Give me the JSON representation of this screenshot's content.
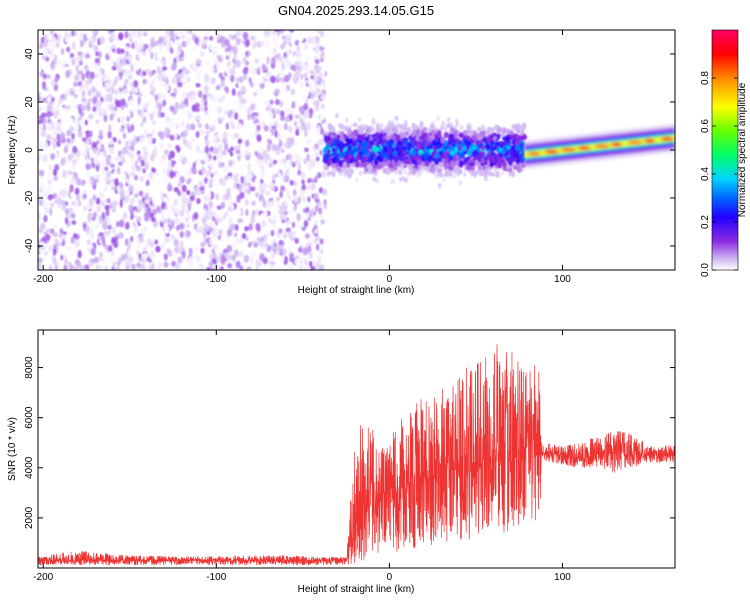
{
  "figure": {
    "title": "GN04.2025.293.14.05.G15"
  },
  "chart_data": [
    {
      "type": "heatmap",
      "name": "spectrogram",
      "xlabel": "Height of straight line (km)",
      "ylabel": "Frequency (Hz)",
      "xlim": [
        -203,
        165
      ],
      "ylim": [
        -50,
        50
      ],
      "x_ticks": [
        -200,
        -100,
        0,
        100
      ],
      "y_ticks": [
        -40,
        -20,
        0,
        20,
        40
      ],
      "colorbar": {
        "label": "Normalized spectral amplitude",
        "range": [
          0,
          1
        ],
        "ticks": [
          0,
          0.2,
          0.4,
          0.6,
          0.8
        ],
        "colors": [
          "#ffffff",
          "#cdb4f2",
          "#8a2be2",
          "#3300ff",
          "#0066ff",
          "#00d4ff",
          "#00ff66",
          "#aaff00",
          "#ffff00",
          "#ff8800",
          "#ff0000",
          "#ff0066"
        ]
      },
      "regions": [
        {
          "description": "noise",
          "x_range": [
            -203,
            -37
          ],
          "freq_range": [
            -50,
            50
          ],
          "amplitude": 0.05
        },
        {
          "description": "signal",
          "x_range": [
            -37,
            78
          ],
          "freq_range": [
            -12,
            10
          ],
          "center_freq": 0,
          "amplitude": 0.4
        },
        {
          "description": "strong tone",
          "x_range": [
            78,
            165
          ],
          "center_freq_start": -2,
          "center_freq_end": 5,
          "amplitude": 0.95
        }
      ],
      "grid": false
    },
    {
      "type": "line",
      "name": "snr",
      "xlabel": "Height of straight line (km)",
      "ylabel": "SNR (10 * v/v)",
      "xlim": [
        -203,
        165
      ],
      "ylim": [
        0,
        9500
      ],
      "x_ticks": [
        -200,
        -100,
        0,
        100
      ],
      "y_ticks": [
        2000,
        4000,
        6000,
        8000
      ],
      "color": "#ee3333",
      "series": [
        {
          "x": [
            -203,
            -180,
            -150,
            -120,
            -90,
            -60,
            -40,
            -25,
            -20,
            -15,
            -10,
            -5,
            0,
            10,
            20,
            30,
            40,
            50,
            60,
            70,
            80,
            87,
            88,
            100,
            110,
            120,
            130,
            140,
            150,
            165
          ],
          "y": [
            300,
            300,
            300,
            300,
            300,
            300,
            300,
            300,
            1800,
            2400,
            2800,
            2600,
            2700,
            3200,
            3600,
            3800,
            4000,
            4100,
            4400,
            4500,
            4500,
            4500,
            4600,
            4500,
            4400,
            4500,
            4700,
            4500,
            4500,
            4500
          ],
          "envelope_high": [
            450,
            700,
            500,
            450,
            500,
            500,
            450,
            420,
            5200,
            6000,
            5600,
            4800,
            5200,
            6400,
            6800,
            7200,
            7600,
            8600,
            9300,
            8800,
            7800,
            8400,
            5000,
            4900,
            5000,
            5300,
            5500,
            5400,
            4900,
            4900
          ],
          "envelope_low": [
            120,
            120,
            120,
            120,
            120,
            120,
            120,
            150,
            150,
            300,
            500,
            400,
            500,
            700,
            900,
            900,
            1000,
            1100,
            1300,
            1000,
            1300,
            1500,
            4300,
            4100,
            4000,
            4000,
            3800,
            4000,
            4200,
            4200
          ]
        }
      ],
      "grid": false
    }
  ]
}
